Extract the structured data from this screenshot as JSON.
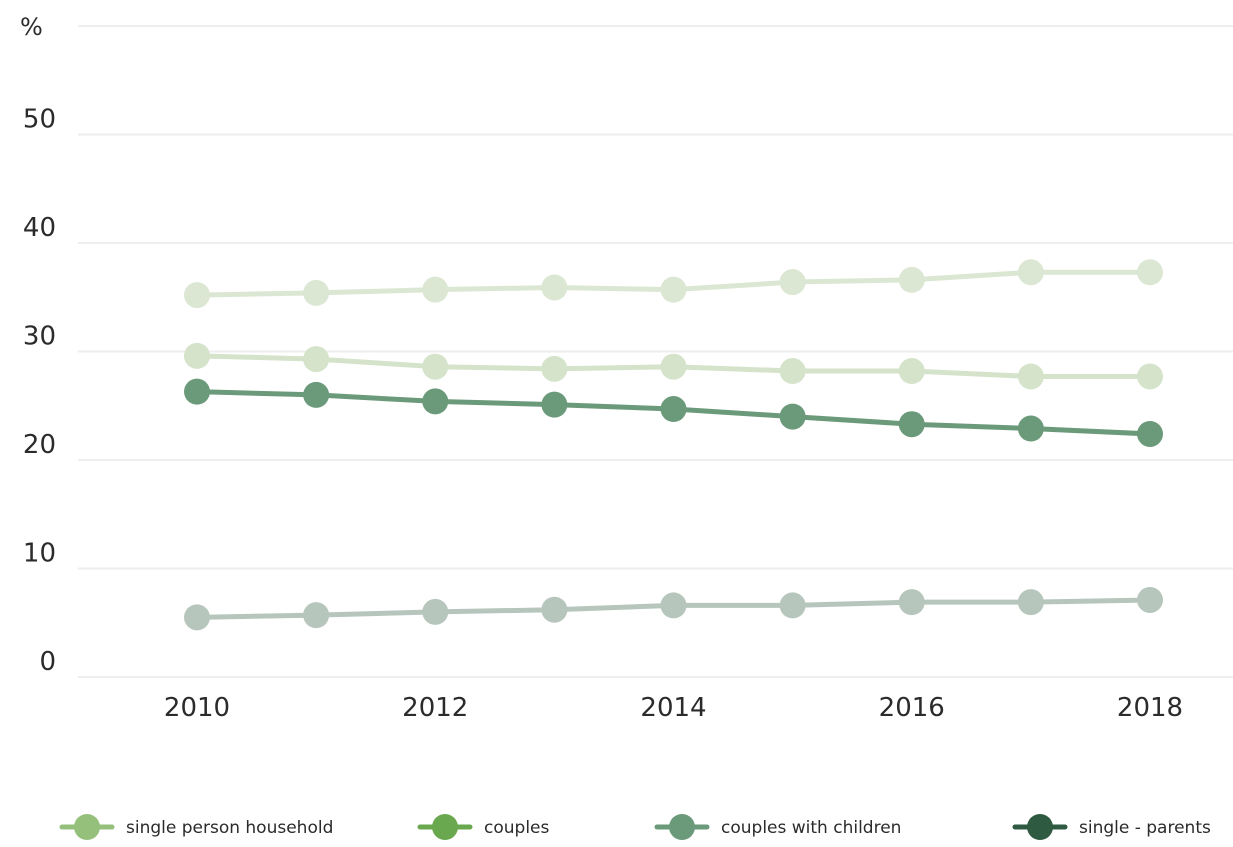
{
  "chart_data": {
    "type": "line",
    "y_unit": "%",
    "x": [
      2010,
      2011,
      2012,
      2013,
      2014,
      2015,
      2016,
      2017,
      2018
    ],
    "x_ticks": [
      "2010",
      "2012",
      "2014",
      "2016",
      "2018"
    ],
    "y_ticks": [
      "0",
      "10",
      "20",
      "30",
      "40",
      "50"
    ],
    "ylim": [
      0,
      60
    ],
    "grid": true,
    "legend_position": "bottom",
    "series": [
      {
        "name": "single person household",
        "color": "#dbe7d3",
        "values": [
          35.2,
          35.4,
          35.7,
          35.9,
          35.7,
          36.4,
          36.6,
          37.3,
          37.3
        ]
      },
      {
        "name": "couples",
        "color": "#d5e3ca",
        "values": [
          29.6,
          29.3,
          28.6,
          28.4,
          28.6,
          28.2,
          28.2,
          27.7,
          27.7
        ]
      },
      {
        "name": "couples with children",
        "color": "#6b9a7a",
        "values": [
          26.3,
          26.0,
          25.4,
          25.1,
          24.7,
          24.0,
          23.3,
          22.9,
          22.4
        ]
      },
      {
        "name": "single - parents",
        "color": "#b7c6bd",
        "values": [
          5.5,
          5.7,
          6.0,
          6.2,
          6.6,
          6.6,
          6.9,
          6.9,
          7.1
        ]
      }
    ],
    "legend": [
      {
        "name": "single person household",
        "color": "#95c07c"
      },
      {
        "name": "couples",
        "color": "#6aa84f"
      },
      {
        "name": "couples with children",
        "color": "#6b9a7a"
      },
      {
        "name": "single - parents",
        "color": "#2d5a40"
      }
    ]
  }
}
